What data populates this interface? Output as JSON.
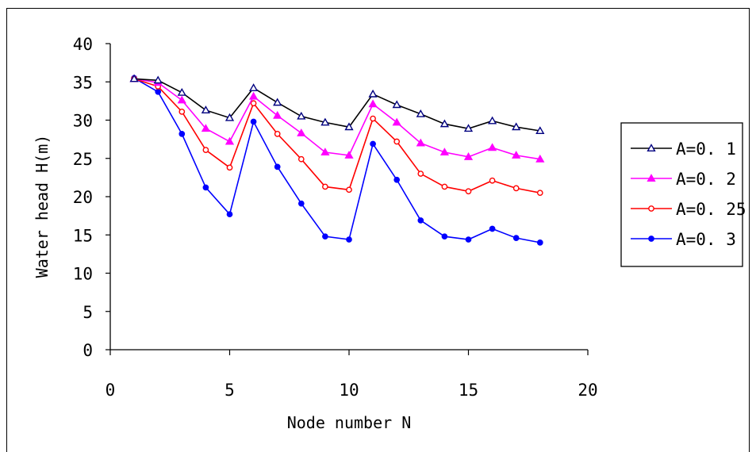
{
  "chart_data": {
    "type": "line",
    "xlabel": "Node number N",
    "ylabel": "Water head H(m)",
    "xlim": [
      0,
      20
    ],
    "ylim": [
      0,
      40
    ],
    "x_ticks": [
      "0",
      "5",
      "10",
      "15",
      "20"
    ],
    "y_ticks": [
      "0",
      "5",
      "10",
      "15",
      "20",
      "25",
      "30",
      "35",
      "40"
    ],
    "grid": false,
    "legend_position": "right",
    "x": [
      1,
      2,
      3,
      4,
      5,
      6,
      7,
      8,
      9,
      10,
      11,
      12,
      13,
      14,
      15,
      16,
      17,
      18
    ],
    "series": [
      {
        "name": "A=0.1",
        "color": "#000000",
        "line_color": "#000000",
        "marker": "hollow-triangle",
        "marker_color": "#000080",
        "values": [
          35.4,
          35.2,
          33.6,
          31.3,
          30.3,
          34.2,
          32.3,
          30.5,
          29.7,
          29.1,
          33.4,
          32.0,
          30.8,
          29.5,
          28.9,
          29.9,
          29.1,
          28.6
        ]
      },
      {
        "name": "A=0.2",
        "color": "#FF00FF",
        "line_color": "#FF00FF",
        "marker": "filled-triangle",
        "marker_color": "#FF00FF",
        "values": [
          35.4,
          34.9,
          32.6,
          28.9,
          27.2,
          33.1,
          30.6,
          28.3,
          25.8,
          25.4,
          32.1,
          29.7,
          27.0,
          25.8,
          25.2,
          26.4,
          25.4,
          24.9
        ]
      },
      {
        "name": "A=0.25",
        "color": "#FF0000",
        "line_color": "#FF0000",
        "marker": "hollow-circle",
        "marker_color": "#FF0000",
        "values": [
          35.4,
          34.4,
          31.1,
          26.1,
          23.8,
          32.2,
          28.2,
          24.9,
          21.3,
          20.9,
          30.2,
          27.2,
          23.0,
          21.3,
          20.7,
          22.1,
          21.1,
          20.5
        ]
      },
      {
        "name": "A=0.3",
        "color": "#0000FF",
        "line_color": "#0000FF",
        "marker": "filled-circle",
        "marker_color": "#0000FF",
        "values": [
          35.5,
          33.7,
          28.2,
          21.2,
          17.7,
          29.8,
          23.9,
          19.1,
          14.8,
          14.4,
          26.9,
          22.2,
          16.9,
          14.8,
          14.4,
          15.8,
          14.6,
          14.0
        ]
      }
    ]
  }
}
